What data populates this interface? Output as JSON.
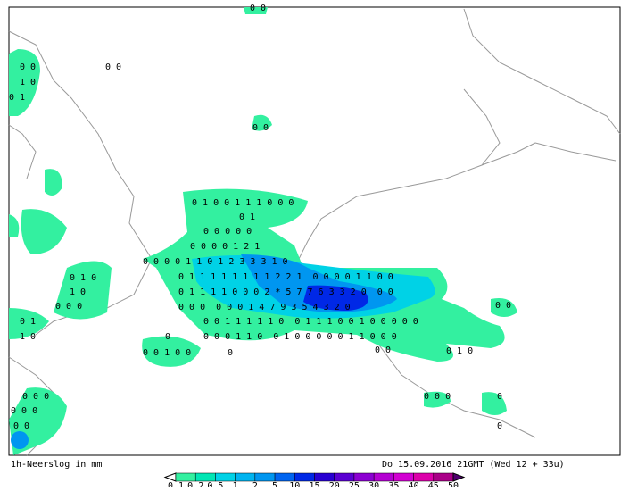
{
  "map": {
    "caption": "1h-Neerslog in mm",
    "timestamp": "Do 15.09.2016 21GMT (Wed 12 + 33u)",
    "legend": {
      "labels": [
        "0.1",
        "0.2",
        "0.5",
        "1",
        "2",
        "5",
        "10",
        "15",
        "20",
        "25",
        "30",
        "35",
        "40",
        "45",
        "50"
      ],
      "colors": [
        "#33f0a0",
        "#00e6b4",
        "#00d2e6",
        "#00b4f0",
        "#0096f0",
        "#0064f0",
        "#0028e6",
        "#2800d2",
        "#5a00d2",
        "#8c00d2",
        "#b400d2",
        "#d200d2",
        "#dc00aa",
        "#aa0088"
      ]
    },
    "grid_labels": [
      "0 0",
      "0 0",
      "0 0",
      "1 0",
      "0 1",
      "0 0",
      "0 1 0 0 1 1 1 0 0 0",
      "0 1",
      "0 0 0 0 0",
      "0 0 0 0 1 2 1",
      "0 0 0 0 1 1 0 1 2 3 3 3 1 0",
      "0 1 1 1 1 1 1 1 1 2 2 1  0 0 0 0 1 1 0 0",
      "0 1 1 1 1 0 0 0 2 * 5 7 7 6 3 3 2 0  0 0",
      "0 0 0  0 0 0 1 4 7 9 3 5 4 3 2 0",
      "0 0 1 1 1 1 1 0  0 1 1 1 0 0 1 0 0 0 0 0",
      "0 0 0 1 1 0  0 1 0 0 0 0 0 1 1 0 0 0",
      "0 1 0",
      "1 0",
      "0 0 0",
      "0 1",
      "1 0",
      "0",
      "0 0 1 0 0",
      "0",
      "0 0",
      "0 0 0",
      "0",
      "0 0",
      "0 1 0",
      "0 0 0",
      "0 0 0",
      "0 0",
      "0"
    ]
  }
}
